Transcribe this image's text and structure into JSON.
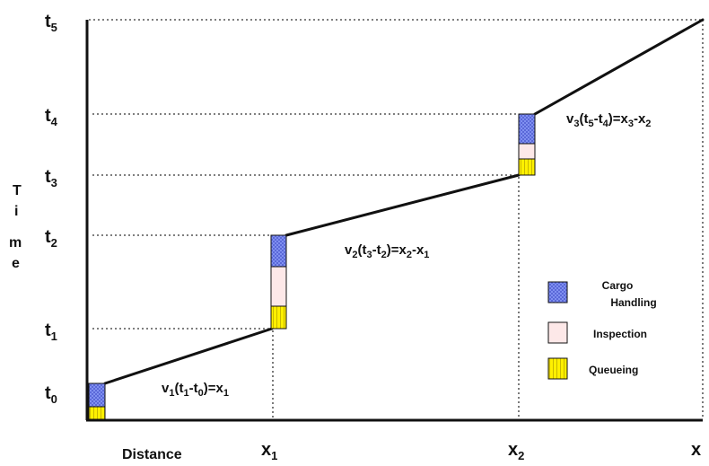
{
  "diagram": {
    "y_axis_title": [
      "T",
      "i",
      "m",
      "e"
    ],
    "x_axis_title": "Distance",
    "time_ticks": [
      {
        "base": "t",
        "sub": "5"
      },
      {
        "base": "t",
        "sub": "4"
      },
      {
        "base": "t",
        "sub": "3"
      },
      {
        "base": "t",
        "sub": "2"
      },
      {
        "base": "t",
        "sub": "1"
      },
      {
        "base": "t",
        "sub": "0"
      }
    ],
    "distance_ticks": [
      {
        "base": "x",
        "sub": "1"
      },
      {
        "base": "x",
        "sub": "2"
      },
      {
        "base": "x",
        "sub": ""
      }
    ],
    "equations": [
      {
        "parts": [
          [
            "v",
            ""
          ],
          [
            "1",
            "sub"
          ],
          [
            "(t",
            ""
          ],
          [
            "1",
            "sub"
          ],
          [
            "-t",
            ""
          ],
          [
            "0",
            "sub"
          ],
          [
            ")=x",
            ""
          ],
          [
            "1",
            "sub"
          ]
        ]
      },
      {
        "parts": [
          [
            "v",
            ""
          ],
          [
            "2",
            "sub"
          ],
          [
            "(t",
            ""
          ],
          [
            "3",
            "sub"
          ],
          [
            "-t",
            ""
          ],
          [
            "2",
            "sub"
          ],
          [
            ")=x",
            ""
          ],
          [
            "2",
            "sub"
          ],
          [
            "-x",
            ""
          ],
          [
            "1",
            "sub"
          ]
        ]
      },
      {
        "parts": [
          [
            "v",
            ""
          ],
          [
            "3",
            "sub"
          ],
          [
            "(t",
            ""
          ],
          [
            "5",
            "sub"
          ],
          [
            "-t",
            ""
          ],
          [
            "4",
            "sub"
          ],
          [
            ")=x",
            ""
          ],
          [
            "3",
            "sub"
          ],
          [
            "-x",
            ""
          ],
          [
            "2",
            "sub"
          ]
        ]
      }
    ],
    "legend": [
      {
        "lines": [
          "Cargo",
          "Handling"
        ],
        "color": "#8090f0",
        "pattern": "cargo"
      },
      {
        "lines": [
          "Inspection"
        ],
        "color": "#fde8e8",
        "pattern": "inspection"
      },
      {
        "lines": [
          "Queueing"
        ],
        "color": "#fff000",
        "pattern": "queueing"
      }
    ],
    "colors": {
      "line": "#111111",
      "cargo": "#8090f0",
      "inspection": "#fde8e8",
      "queueing": "#fff000"
    }
  }
}
